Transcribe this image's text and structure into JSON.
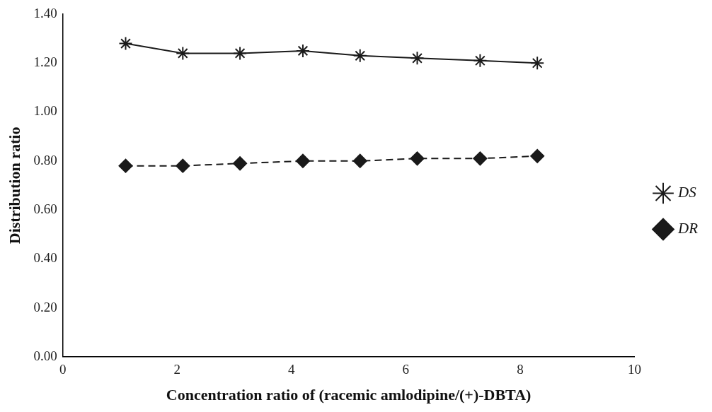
{
  "chart_data": {
    "type": "line",
    "xlabel": "Concentration ratio of (racemic amlodipine/(+)-DBTA)",
    "ylabel": "Distribution ratio",
    "x": [
      1.1,
      2.1,
      3.1,
      4.2,
      5.2,
      6.2,
      7.3,
      8.3
    ],
    "series": [
      {
        "name": "DS",
        "color": "#1a1a1a",
        "marker": "cross",
        "line_style": "solid",
        "values": [
          1.28,
          1.24,
          1.24,
          1.25,
          1.23,
          1.22,
          1.21,
          1.2
        ]
      },
      {
        "name": "DR",
        "color": "#1a1a1a",
        "marker": "diamond",
        "line_style": "dashed",
        "values": [
          0.78,
          0.78,
          0.79,
          0.8,
          0.8,
          0.81,
          0.81,
          0.82
        ]
      }
    ],
    "xlim": [
      0,
      10
    ],
    "xticks": [
      0,
      2,
      4,
      6,
      8,
      10
    ],
    "ylim": [
      0,
      1.4
    ],
    "yticks": [
      {
        "value": 0,
        "label": "0.00"
      },
      {
        "value": 0.2,
        "label": "0.20"
      },
      {
        "value": 0.4,
        "label": "0.40"
      },
      {
        "value": 0.6,
        "label": "0.60"
      },
      {
        "value": 0.8,
        "label": "0.80"
      },
      {
        "value": 1.0,
        "label": "1.00"
      },
      {
        "value": 1.2,
        "label": "1.20"
      },
      {
        "value": 1.4,
        "label": "1.40"
      }
    ],
    "grid": false,
    "legend": "right"
  }
}
